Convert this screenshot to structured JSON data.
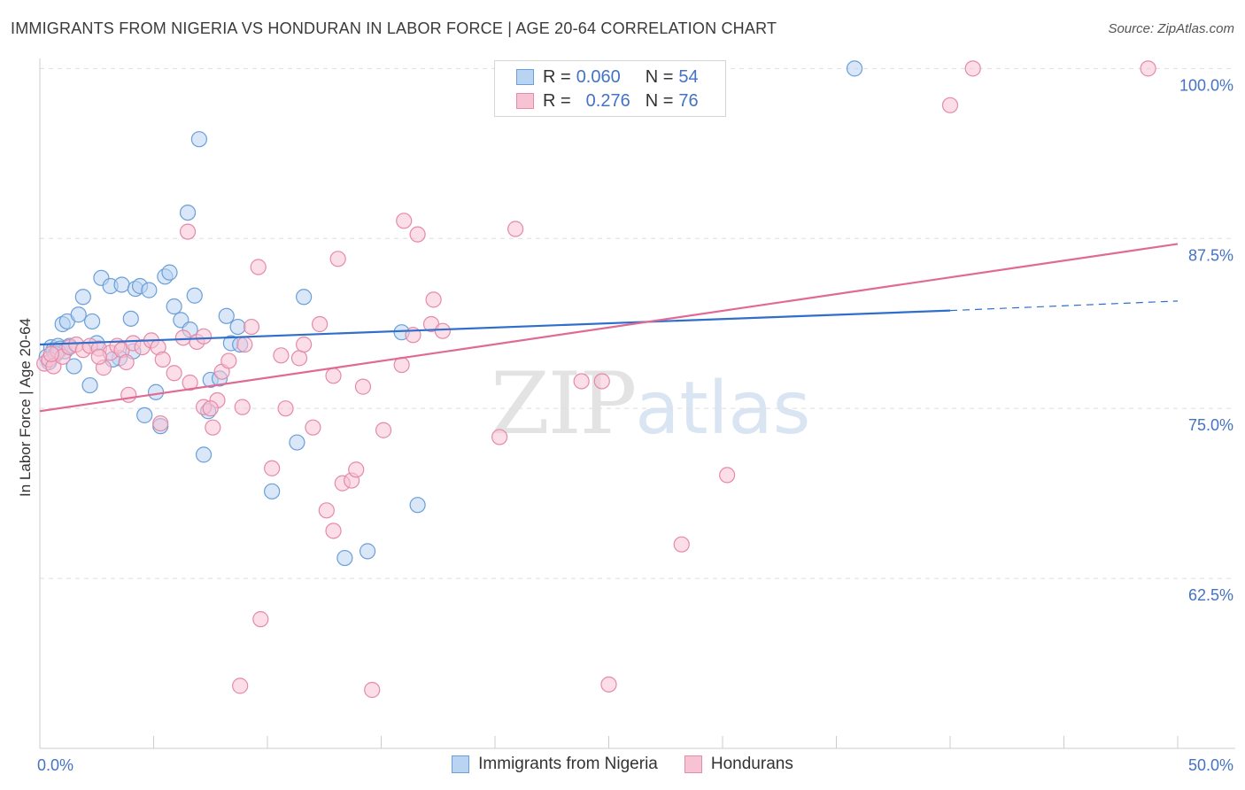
{
  "title": "IMMIGRANTS FROM NIGERIA VS HONDURAN IN LABOR FORCE | AGE 20-64 CORRELATION CHART",
  "source": "Source: ZipAtlas.com",
  "watermark": {
    "zip": "ZIP",
    "atlas": "atlas"
  },
  "legend": {
    "r_label": "R =",
    "n_label": "N =",
    "series": [
      {
        "name": "Immigrants from Nigeria",
        "r": "0.060",
        "n": "54",
        "fill": "#b9d3f2",
        "stroke": "#6a9fd8"
      },
      {
        "name": "Hondurans",
        "r": "0.276",
        "n": "76",
        "fill": "#f7c3d3",
        "stroke": "#e58aa8"
      }
    ]
  },
  "chart_data": {
    "type": "scatter",
    "title": "IMMIGRANTS FROM NIGERIA VS HONDURAN IN LABOR FORCE | AGE 20-64 CORRELATION CHART",
    "xlabel": "",
    "ylabel": "In Labor Force | Age 20-64",
    "xlim": [
      0,
      50
    ],
    "ylim": [
      50,
      101
    ],
    "x_ticks": [
      {
        "value": 0,
        "label": "0.0%"
      },
      {
        "value": 50,
        "label": "50.0%"
      }
    ],
    "y_ticks": [
      {
        "value": 100,
        "label": "100.0%"
      },
      {
        "value": 87.5,
        "label": "87.5%"
      },
      {
        "value": 75,
        "label": "75.0%"
      },
      {
        "value": 62.5,
        "label": "62.5%"
      }
    ],
    "grid": true,
    "legend_position": "top-center",
    "series": [
      {
        "name": "Immigrants from Nigeria",
        "color": "#6a9fd8",
        "fill": "#b9d3f2",
        "trend": {
          "x": [
            0,
            40
          ],
          "y": [
            79.7,
            82.2
          ],
          "dashed_to": [
            50,
            82.9
          ],
          "color": "#2f6fcc"
        },
        "points": [
          [
            0.3,
            78.8
          ],
          [
            0.5,
            79.5
          ],
          [
            0.6,
            79.3
          ],
          [
            0.8,
            79.6
          ],
          [
            0.9,
            79.4
          ],
          [
            1.1,
            79.2
          ],
          [
            1.0,
            81.2
          ],
          [
            1.2,
            81.4
          ],
          [
            1.7,
            81.9
          ],
          [
            1.9,
            83.2
          ],
          [
            2.3,
            81.4
          ],
          [
            2.7,
            84.6
          ],
          [
            3.1,
            84.0
          ],
          [
            3.6,
            84.1
          ],
          [
            4.0,
            81.6
          ],
          [
            4.2,
            83.8
          ],
          [
            4.4,
            84.0
          ],
          [
            4.8,
            83.7
          ],
          [
            5.5,
            84.7
          ],
          [
            5.7,
            85.0
          ],
          [
            5.9,
            82.5
          ],
          [
            6.2,
            81.5
          ],
          [
            6.6,
            80.8
          ],
          [
            6.8,
            83.3
          ],
          [
            7.0,
            94.8
          ],
          [
            6.5,
            89.4
          ],
          [
            8.2,
            81.8
          ],
          [
            8.4,
            79.8
          ],
          [
            8.7,
            81.0
          ],
          [
            8.8,
            79.7
          ],
          [
            11.6,
            83.2
          ],
          [
            15.9,
            80.6
          ],
          [
            2.2,
            76.7
          ],
          [
            3.5,
            78.7
          ],
          [
            4.1,
            79.2
          ],
          [
            1.5,
            78.1
          ],
          [
            5.1,
            76.2
          ],
          [
            4.6,
            74.5
          ],
          [
            5.3,
            73.7
          ],
          [
            7.2,
            71.6
          ],
          [
            7.4,
            74.8
          ],
          [
            7.5,
            77.1
          ],
          [
            7.9,
            77.2
          ],
          [
            10.2,
            68.9
          ],
          [
            11.3,
            72.5
          ],
          [
            13.4,
            64.0
          ],
          [
            14.4,
            64.5
          ],
          [
            16.6,
            67.9
          ],
          [
            35.8,
            100.0
          ],
          [
            3.2,
            78.6
          ],
          [
            2.5,
            79.8
          ],
          [
            1.3,
            79.6
          ],
          [
            0.4,
            78.4
          ],
          [
            0.7,
            79.0
          ]
        ]
      },
      {
        "name": "Hondurans",
        "color": "#e58aa8",
        "fill": "#f7c3d3",
        "trend": {
          "x": [
            0,
            50
          ],
          "y": [
            74.8,
            87.1
          ],
          "color": "#e06a93"
        },
        "points": [
          [
            0.2,
            78.3
          ],
          [
            0.4,
            78.6
          ],
          [
            0.6,
            78.1
          ],
          [
            0.8,
            79.2
          ],
          [
            1.0,
            78.8
          ],
          [
            1.3,
            79.5
          ],
          [
            1.6,
            79.7
          ],
          [
            1.9,
            79.3
          ],
          [
            2.2,
            79.6
          ],
          [
            2.6,
            79.4
          ],
          [
            2.8,
            78.0
          ],
          [
            3.1,
            79.1
          ],
          [
            3.4,
            79.6
          ],
          [
            3.6,
            79.3
          ],
          [
            3.8,
            78.4
          ],
          [
            4.1,
            79.8
          ],
          [
            4.5,
            79.5
          ],
          [
            4.9,
            80.0
          ],
          [
            5.2,
            79.5
          ],
          [
            5.4,
            78.6
          ],
          [
            5.9,
            77.6
          ],
          [
            6.3,
            80.2
          ],
          [
            6.6,
            76.9
          ],
          [
            6.9,
            79.9
          ],
          [
            7.2,
            80.3
          ],
          [
            7.6,
            73.6
          ],
          [
            8.0,
            77.7
          ],
          [
            8.3,
            78.5
          ],
          [
            9.0,
            79.7
          ],
          [
            9.3,
            81.0
          ],
          [
            8.9,
            75.1
          ],
          [
            7.8,
            75.6
          ],
          [
            7.2,
            75.1
          ],
          [
            7.5,
            75.0
          ],
          [
            6.5,
            88.0
          ],
          [
            9.6,
            85.4
          ],
          [
            10.6,
            78.9
          ],
          [
            10.8,
            75.0
          ],
          [
            10.2,
            70.6
          ],
          [
            11.4,
            78.7
          ],
          [
            11.6,
            79.7
          ],
          [
            12.0,
            73.6
          ],
          [
            12.3,
            81.2
          ],
          [
            12.9,
            77.4
          ],
          [
            13.1,
            86.0
          ],
          [
            13.3,
            69.5
          ],
          [
            13.7,
            69.7
          ],
          [
            13.9,
            70.5
          ],
          [
            14.2,
            76.6
          ],
          [
            15.1,
            73.4
          ],
          [
            15.9,
            78.2
          ],
          [
            16.4,
            80.4
          ],
          [
            16.6,
            87.8
          ],
          [
            16.0,
            88.8
          ],
          [
            17.2,
            81.2
          ],
          [
            17.3,
            83.0
          ],
          [
            17.7,
            80.7
          ],
          [
            20.2,
            72.9
          ],
          [
            20.9,
            88.2
          ],
          [
            23.8,
            77.0
          ],
          [
            24.7,
            77.0
          ],
          [
            28.2,
            65.0
          ],
          [
            30.2,
            70.1
          ],
          [
            40.0,
            97.3
          ],
          [
            41.0,
            100.0
          ],
          [
            48.7,
            100.0
          ],
          [
            9.7,
            59.5
          ],
          [
            8.8,
            54.6
          ],
          [
            14.6,
            54.3
          ],
          [
            25.0,
            54.7
          ],
          [
            5.3,
            73.9
          ],
          [
            12.6,
            67.5
          ],
          [
            12.9,
            66.0
          ],
          [
            2.6,
            78.8
          ],
          [
            3.9,
            76.0
          ],
          [
            0.5,
            79.0
          ]
        ]
      }
    ]
  }
}
